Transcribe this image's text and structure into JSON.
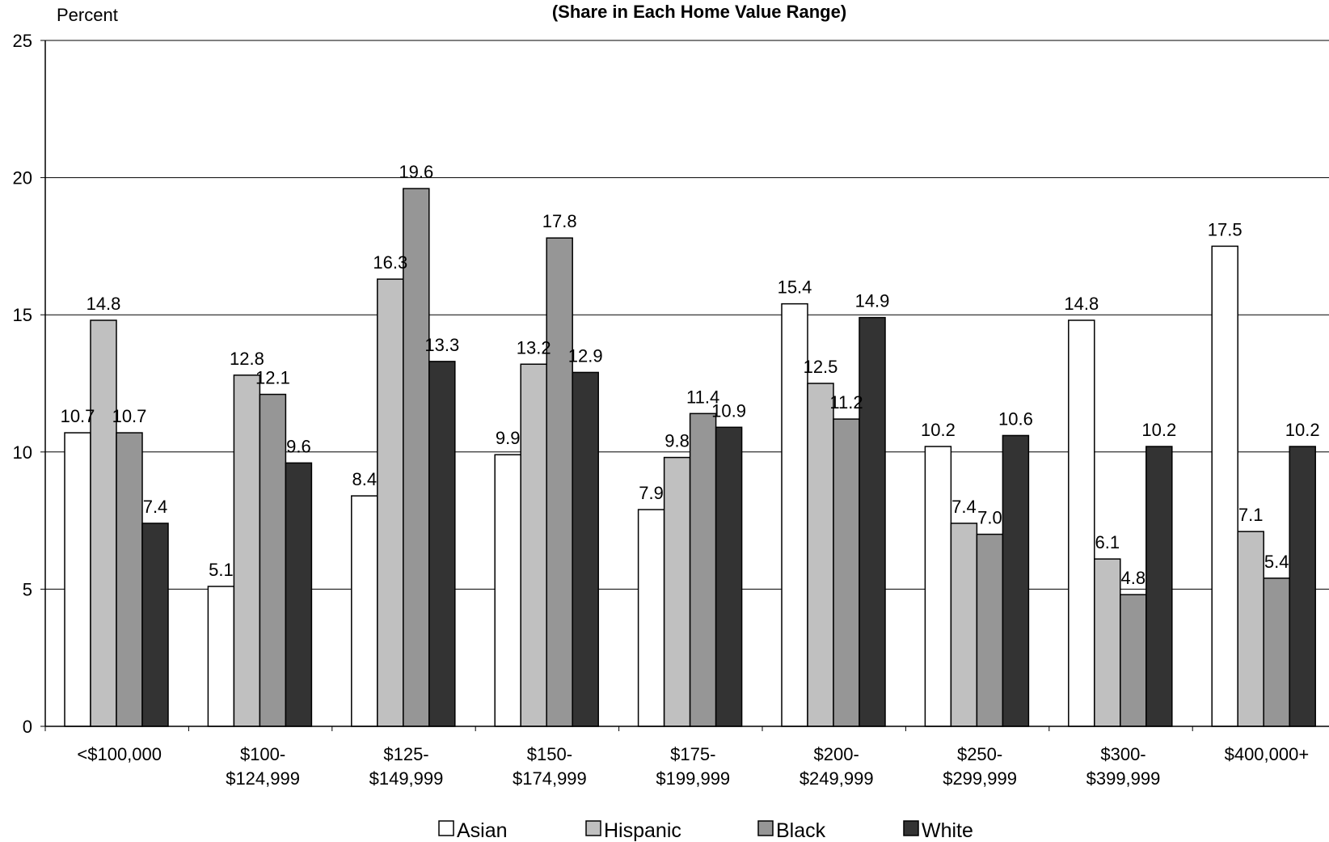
{
  "chart_data": {
    "type": "bar",
    "title": "(Share in Each Home Value Range)",
    "ylabel": "Percent",
    "xlabel": "",
    "ylim": [
      0,
      25
    ],
    "yticks": [
      0,
      5,
      10,
      15,
      20,
      25
    ],
    "grid": true,
    "legend_position": "bottom",
    "categories": [
      [
        "<$100,000"
      ],
      [
        "$100-",
        "$124,999"
      ],
      [
        "$125-",
        "$149,999"
      ],
      [
        "$150-",
        "$174,999"
      ],
      [
        "$175-",
        "$199,999"
      ],
      [
        "$200-",
        "$249,999"
      ],
      [
        "$250-",
        "$299,999"
      ],
      [
        "$300-",
        "$399,999"
      ],
      [
        "$400,000+"
      ]
    ],
    "series": [
      {
        "name": "Asian",
        "color": "#ffffff",
        "values": [
          10.7,
          5.1,
          8.4,
          9.9,
          7.9,
          15.4,
          10.2,
          14.8,
          17.5
        ],
        "labels": [
          "10.7",
          "5.1",
          "8.4",
          "9.9",
          "7.9",
          "15.4",
          "10.2",
          "14.8",
          "17.5"
        ]
      },
      {
        "name": "Hispanic",
        "color": "#c0c0c0",
        "values": [
          14.8,
          12.8,
          16.3,
          13.2,
          9.8,
          12.5,
          7.4,
          6.1,
          7.1
        ],
        "labels": [
          "14.8",
          "12.8",
          "16.3",
          "13.2",
          "9.8",
          "12.5",
          "7.4",
          "6.1",
          "7.1"
        ]
      },
      {
        "name": "Black",
        "color": "#969696",
        "values": [
          10.7,
          12.1,
          19.6,
          17.8,
          11.4,
          11.2,
          7.0,
          4.8,
          5.4
        ],
        "labels": [
          "10.7",
          "12.1",
          "19.6",
          "17.8",
          "11.4",
          "11.2",
          "7.0",
          "4.8",
          "5.4"
        ]
      },
      {
        "name": "White",
        "color": "#333333",
        "values": [
          7.4,
          9.6,
          13.3,
          12.9,
          10.9,
          14.9,
          10.6,
          10.2,
          10.2
        ],
        "labels": [
          "7.4",
          "9.6",
          "13.3",
          "12.9",
          "10.9",
          "14.9",
          "10.6",
          "10.2",
          "10.2"
        ]
      }
    ]
  }
}
